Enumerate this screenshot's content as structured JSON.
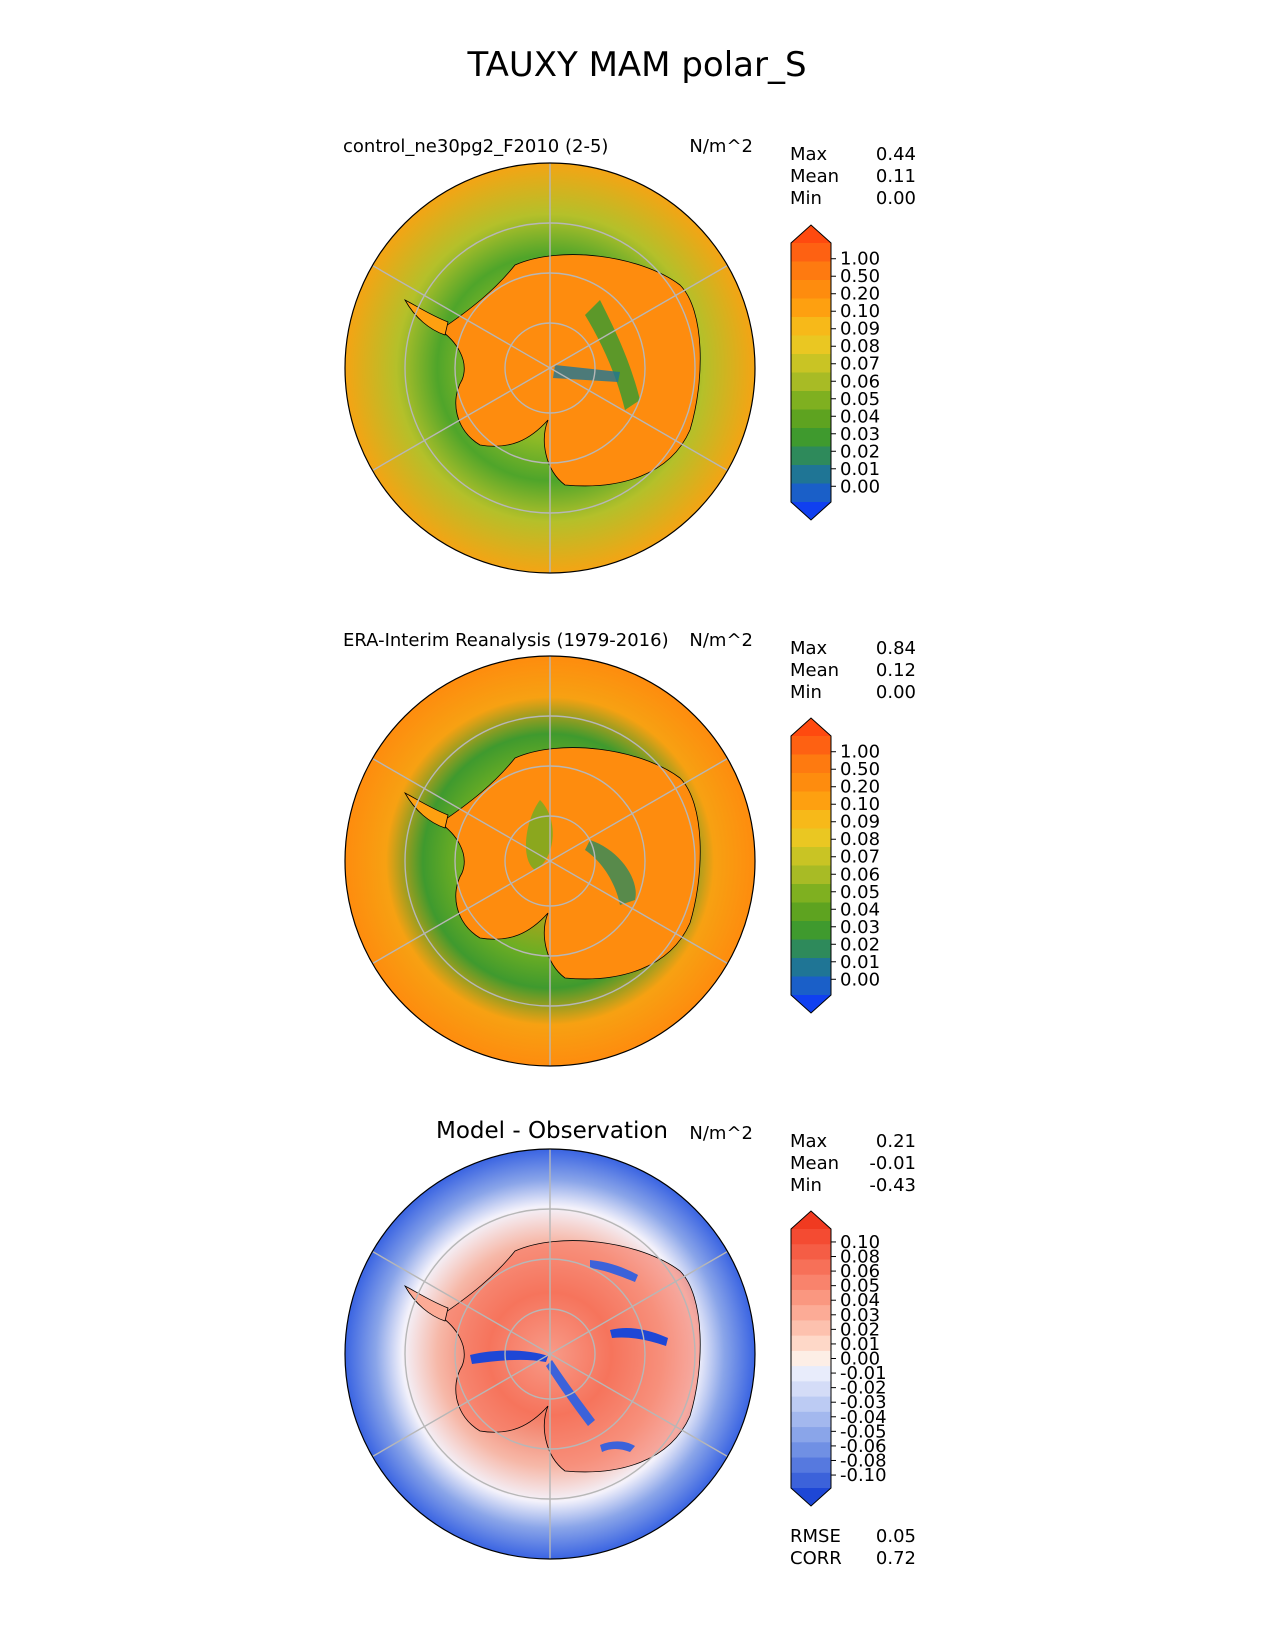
{
  "figure_title": "TAUXY MAM polar_S",
  "panels": [
    {
      "title": "control_ne30pg2_F2010 (2-5)",
      "units": "N/m^2",
      "stats": [
        {
          "label": "Max",
          "value": "0.44"
        },
        {
          "label": "Mean",
          "value": "0.11"
        },
        {
          "label": "Min",
          "value": "0.00"
        }
      ],
      "colorbar": {
        "ticks": [
          "1.00",
          "0.50",
          "0.20",
          "0.10",
          "0.09",
          "0.08",
          "0.07",
          "0.06",
          "0.05",
          "0.04",
          "0.03",
          "0.02",
          "0.01",
          "0.00"
        ],
        "colors": [
          "#ff4a0f",
          "#fe6112",
          "#fe7a10",
          "#fe8c0e",
          "#fea010",
          "#f7b919",
          "#eac722",
          "#c9c424",
          "#a8bb25",
          "#7fb020",
          "#5ea320",
          "#3f9a2e",
          "#2e8a5b",
          "#1f7595",
          "#1a5fc8",
          "#1040f0"
        ],
        "extend": "both"
      }
    },
    {
      "title": "ERA-Interim Reanalysis (1979-2016)",
      "units": "N/m^2",
      "stats": [
        {
          "label": "Max",
          "value": "0.84"
        },
        {
          "label": "Mean",
          "value": "0.12"
        },
        {
          "label": "Min",
          "value": "0.00"
        }
      ],
      "colorbar": {
        "ticks": [
          "1.00",
          "0.50",
          "0.20",
          "0.10",
          "0.09",
          "0.08",
          "0.07",
          "0.06",
          "0.05",
          "0.04",
          "0.03",
          "0.02",
          "0.01",
          "0.00"
        ],
        "colors": [
          "#ff4a0f",
          "#fe6112",
          "#fe7a10",
          "#fe8c0e",
          "#fea010",
          "#f7b919",
          "#eac722",
          "#c9c424",
          "#a8bb25",
          "#7fb020",
          "#5ea320",
          "#3f9a2e",
          "#2e8a5b",
          "#1f7595",
          "#1a5fc8",
          "#1040f0"
        ],
        "extend": "both"
      }
    },
    {
      "title": "Model - Observation",
      "units": "N/m^2",
      "stats": [
        {
          "label": "Max",
          "value": "0.21"
        },
        {
          "label": "Mean",
          "value": "-0.01"
        },
        {
          "label": "Min",
          "value": "-0.43"
        }
      ],
      "colorbar": {
        "ticks": [
          "0.10",
          "0.08",
          "0.06",
          "0.05",
          "0.04",
          "0.03",
          "0.02",
          "0.01",
          "0.00",
          "-0.01",
          "-0.02",
          "-0.03",
          "-0.04",
          "-0.05",
          "-0.06",
          "-0.08",
          "-0.10"
        ],
        "colors": [
          "#f03a20",
          "#f44b32",
          "#f55d45",
          "#f77058",
          "#f9836c",
          "#fa9780",
          "#fcab96",
          "#fdc1ae",
          "#fed8c8",
          "#fdeee6",
          "#e8ecfb",
          "#d4dcf7",
          "#bccbf3",
          "#a3b8ee",
          "#8aa5e9",
          "#7090e4",
          "#5679df",
          "#3c62da",
          "#1e47d6"
        ],
        "extend": "both"
      },
      "extra_stats": [
        {
          "label": "RMSE",
          "value": "0.05"
        },
        {
          "label": "CORR",
          "value": "0.72"
        }
      ]
    }
  ],
  "chart_data": [
    {
      "type": "heatmap",
      "title": "control_ne30pg2_F2010 (2-5)",
      "projection": "south polar stereographic",
      "units": "N/m^2",
      "stats": {
        "max": 0.44,
        "mean": 0.11,
        "min": 0.0
      },
      "color_levels": [
        0.0,
        0.01,
        0.02,
        0.03,
        0.04,
        0.05,
        0.06,
        0.07,
        0.08,
        0.09,
        0.1,
        0.2,
        0.5,
        1.0
      ]
    },
    {
      "type": "heatmap",
      "title": "ERA-Interim Reanalysis (1979-2016)",
      "projection": "south polar stereographic",
      "units": "N/m^2",
      "stats": {
        "max": 0.84,
        "mean": 0.12,
        "min": 0.0
      },
      "color_levels": [
        0.0,
        0.01,
        0.02,
        0.03,
        0.04,
        0.05,
        0.06,
        0.07,
        0.08,
        0.09,
        0.1,
        0.2,
        0.5,
        1.0
      ]
    },
    {
      "type": "heatmap",
      "title": "Model - Observation",
      "projection": "south polar stereographic",
      "units": "N/m^2",
      "stats": {
        "max": 0.21,
        "mean": -0.01,
        "min": -0.43,
        "rmse": 0.05,
        "corr": 0.72
      },
      "color_levels": [
        -0.1,
        -0.08,
        -0.06,
        -0.05,
        -0.04,
        -0.03,
        -0.02,
        -0.01,
        0.0,
        0.01,
        0.02,
        0.03,
        0.04,
        0.05,
        0.06,
        0.08,
        0.1
      ]
    }
  ]
}
